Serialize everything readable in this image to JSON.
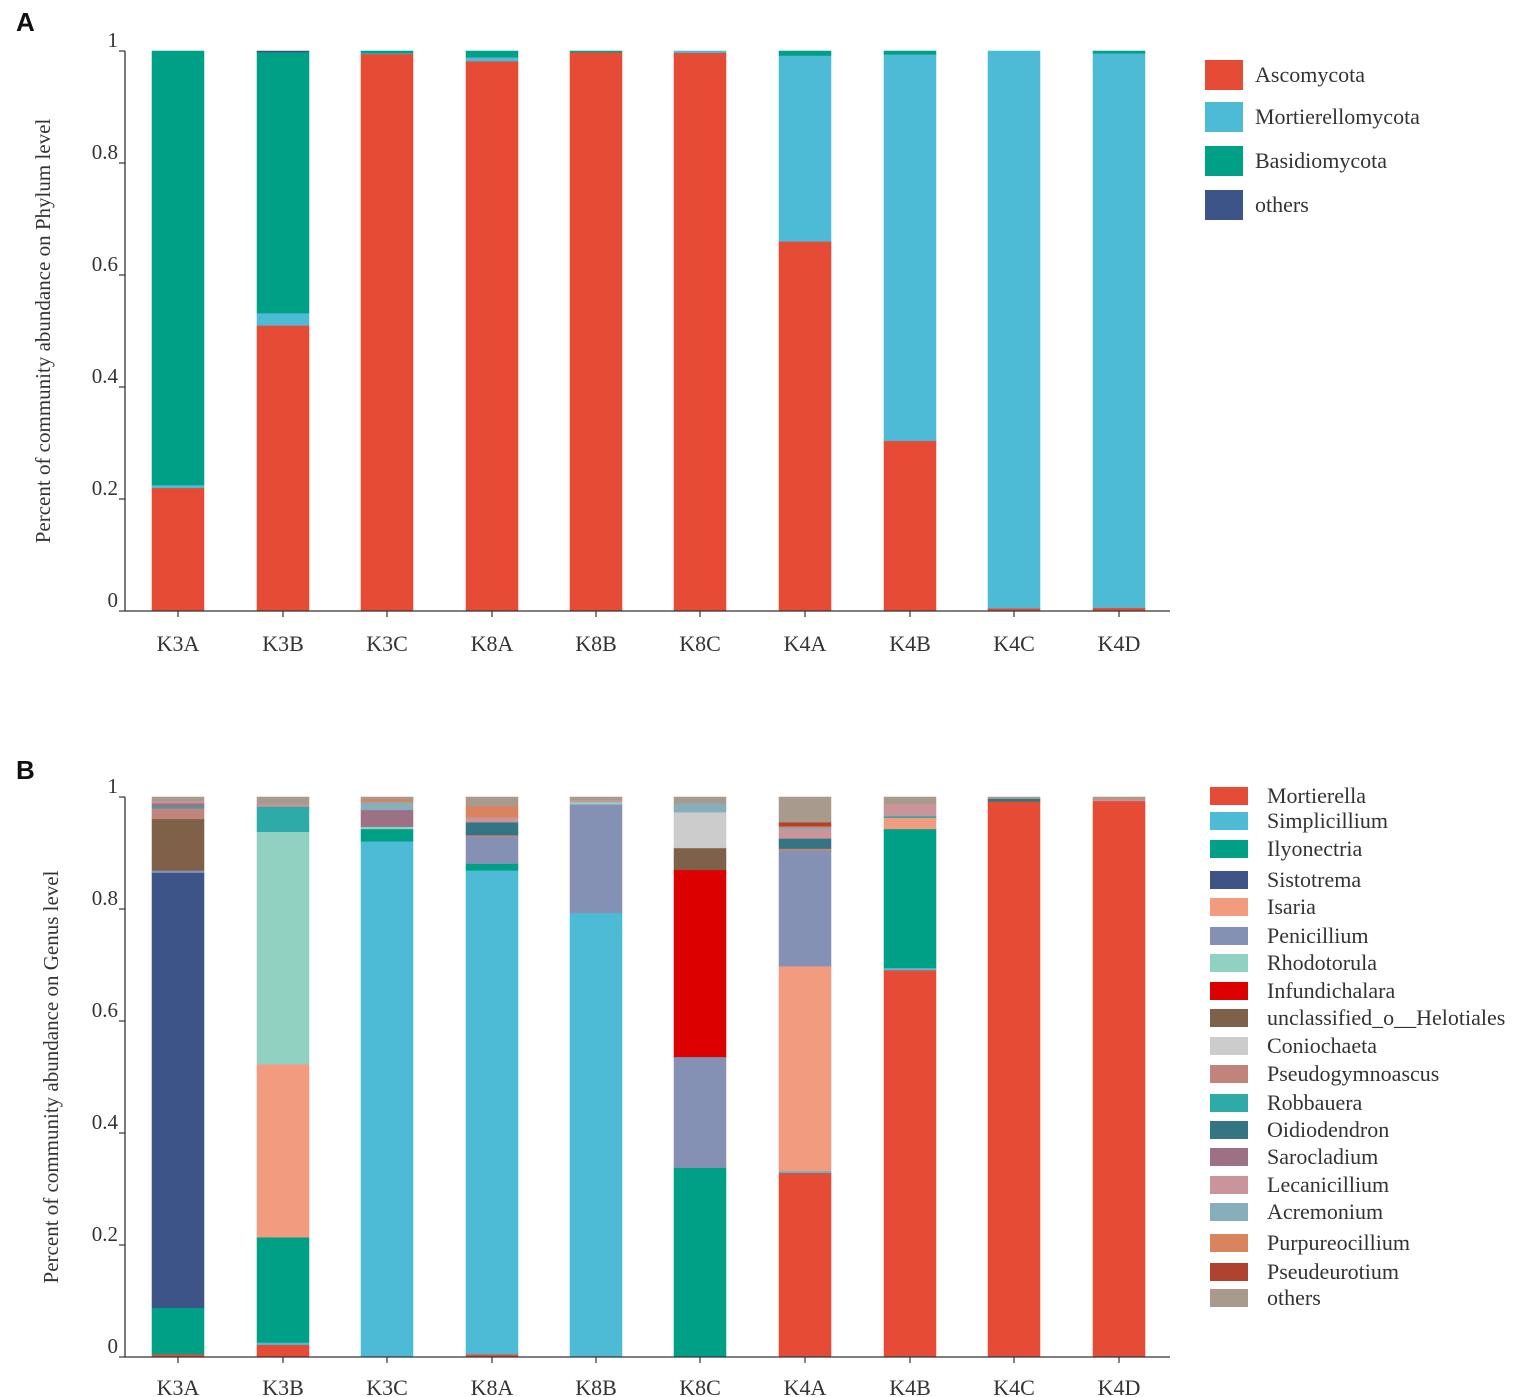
{
  "chart_data": [
    {
      "type": "bar",
      "stacked": true,
      "panel_label": "A",
      "title": "",
      "xlabel": "",
      "ylabel": "Percent of community abundance on Phylum level",
      "ylim": [
        0,
        1
      ],
      "yticks": [
        "0",
        "0.2",
        "0.4",
        "0.6",
        "0.8",
        "1"
      ],
      "categories": [
        "K3A",
        "K3B",
        "K3C",
        "K8A",
        "K8B",
        "K8C",
        "K4A",
        "K4B",
        "K4C",
        "K4D"
      ],
      "legend_position": "right",
      "series": [
        {
          "name": "Ascomycota",
          "color": "#E64B35",
          "values": [
            0.22,
            0.51,
            0.995,
            0.982,
            0.998,
            0.997,
            0.66,
            0.304,
            0.005,
            0.006
          ]
        },
        {
          "name": "Mortierellomycota",
          "color": "#4DBBD5",
          "values": [
            0.005,
            0.022,
            0.001,
            0.007,
            0.0,
            0.003,
            0.332,
            0.69,
            0.995,
            0.99
          ]
        },
        {
          "name": "Basidiomycota",
          "color": "#00A087",
          "values": [
            0.775,
            0.466,
            0.004,
            0.011,
            0.002,
            0.0,
            0.008,
            0.006,
            0.0,
            0.004
          ]
        },
        {
          "name": "others",
          "color": "#3C5488",
          "values": [
            0.0,
            0.002,
            0.0,
            0.0,
            0.0,
            0.0,
            0.0,
            0.0,
            0.0,
            0.0
          ]
        }
      ]
    },
    {
      "type": "bar",
      "stacked": true,
      "panel_label": "B",
      "title": "",
      "xlabel": "",
      "ylabel": "Percent of community abundance on Genus level",
      "ylim": [
        0,
        1
      ],
      "yticks": [
        "0",
        "0.2",
        "0.4",
        "0.6",
        "0.8",
        "1"
      ],
      "categories": [
        "K3A",
        "K3B",
        "K3C",
        "K8A",
        "K8B",
        "K8C",
        "K4A",
        "K4B",
        "K4C",
        "K4D"
      ],
      "legend_position": "right",
      "series": [
        {
          "name": "Mortierella",
          "color": "#E64B35",
          "values": [
            0.005,
            0.022,
            0.0,
            0.005,
            0.0,
            0.0,
            0.329,
            0.691,
            0.992,
            0.993
          ]
        },
        {
          "name": "Simplicillium",
          "color": "#4DBBD5",
          "values": [
            0.0,
            0.004,
            0.921,
            0.864,
            0.793,
            0.0,
            0.003,
            0.004,
            0.0,
            0.0
          ]
        },
        {
          "name": "Ilyonectria",
          "color": "#00A087",
          "values": [
            0.083,
            0.188,
            0.022,
            0.012,
            0.0,
            0.338,
            0.0,
            0.248,
            0.0,
            0.0
          ]
        },
        {
          "name": "Sistotrema",
          "color": "#3C5488",
          "values": [
            0.777,
            0.0,
            0.0,
            0.0,
            0.0,
            0.0,
            0.0,
            0.0,
            0.0,
            0.0
          ]
        },
        {
          "name": "Isaria",
          "color": "#F39B7F",
          "values": [
            0.0,
            0.309,
            0.0,
            0.0,
            0.0,
            0.0,
            0.366,
            0.02,
            0.0,
            0.0
          ]
        },
        {
          "name": "Penicillium",
          "color": "#8491B4",
          "values": [
            0.004,
            0.0,
            0.0,
            0.048,
            0.194,
            0.198,
            0.206,
            0.0,
            0.0,
            0.0
          ]
        },
        {
          "name": "Rhodotorula",
          "color": "#91D1C2",
          "values": [
            0.0,
            0.415,
            0.004,
            0.0,
            0.004,
            0.0,
            0.0,
            0.0,
            0.0,
            0.0
          ]
        },
        {
          "name": "Infundichalara",
          "color": "#DC0000",
          "values": [
            0.0,
            0.0,
            0.0,
            0.0,
            0.0,
            0.334,
            0.0,
            0.0,
            0.0,
            0.0
          ]
        },
        {
          "name": "unclassified_o__Helotiales",
          "color": "#7E6148",
          "values": [
            0.092,
            0.0,
            0.0,
            0.0,
            0.0,
            0.039,
            0.0,
            0.0,
            0.0,
            0.0
          ]
        },
        {
          "name": "Coniochaeta",
          "color": "#CCCCCC",
          "values": [
            0.0,
            0.0,
            0.0,
            0.0,
            0.0,
            0.064,
            0.0,
            0.0,
            0.0,
            0.0
          ]
        },
        {
          "name": "Pseudogymnoascus",
          "color": "#C0847C",
          "values": [
            0.019,
            0.0,
            0.0,
            0.003,
            0.0,
            0.0,
            0.004,
            0.0,
            0.0,
            0.0
          ]
        },
        {
          "name": "Robbauera",
          "color": "#2EAAA8",
          "values": [
            0.003,
            0.045,
            0.0,
            0.0,
            0.0,
            0.0,
            0.0,
            0.003,
            0.0,
            0.0
          ]
        },
        {
          "name": "Oidiodendron",
          "color": "#347584",
          "values": [
            0.0,
            0.0,
            0.0,
            0.023,
            0.0,
            0.0,
            0.018,
            0.0,
            0.005,
            0.0
          ]
        },
        {
          "name": "Sarocladium",
          "color": "#9C7085",
          "values": [
            0.006,
            0.0,
            0.03,
            0.0,
            0.0,
            0.0,
            0.0,
            0.0,
            0.0,
            0.0
          ]
        },
        {
          "name": "Lecanicillium",
          "color": "#C9959A",
          "values": [
            0.004,
            0.004,
            0.0,
            0.009,
            0.004,
            0.0,
            0.016,
            0.022,
            0.0,
            0.003
          ]
        },
        {
          "name": "Acremonium",
          "color": "#87AFBB",
          "values": [
            0.0,
            0.0,
            0.014,
            0.0,
            0.0,
            0.016,
            0.003,
            0.0,
            0.0,
            0.0
          ]
        },
        {
          "name": "Purpureocillium",
          "color": "#D9845E",
          "values": [
            0.0,
            0.0,
            0.005,
            0.02,
            0.0,
            0.0,
            0.003,
            0.0,
            0.0,
            0.0
          ]
        },
        {
          "name": "Pseudeurotium",
          "color": "#B0432F",
          "values": [
            0.0,
            0.0,
            0.0,
            0.0,
            0.0,
            0.0,
            0.007,
            0.0,
            0.0,
            0.0
          ]
        },
        {
          "name": "others",
          "color": "#A89A8C",
          "values": [
            0.007,
            0.013,
            0.004,
            0.016,
            0.005,
            0.011,
            0.045,
            0.012,
            0.003,
            0.004
          ]
        }
      ]
    }
  ]
}
